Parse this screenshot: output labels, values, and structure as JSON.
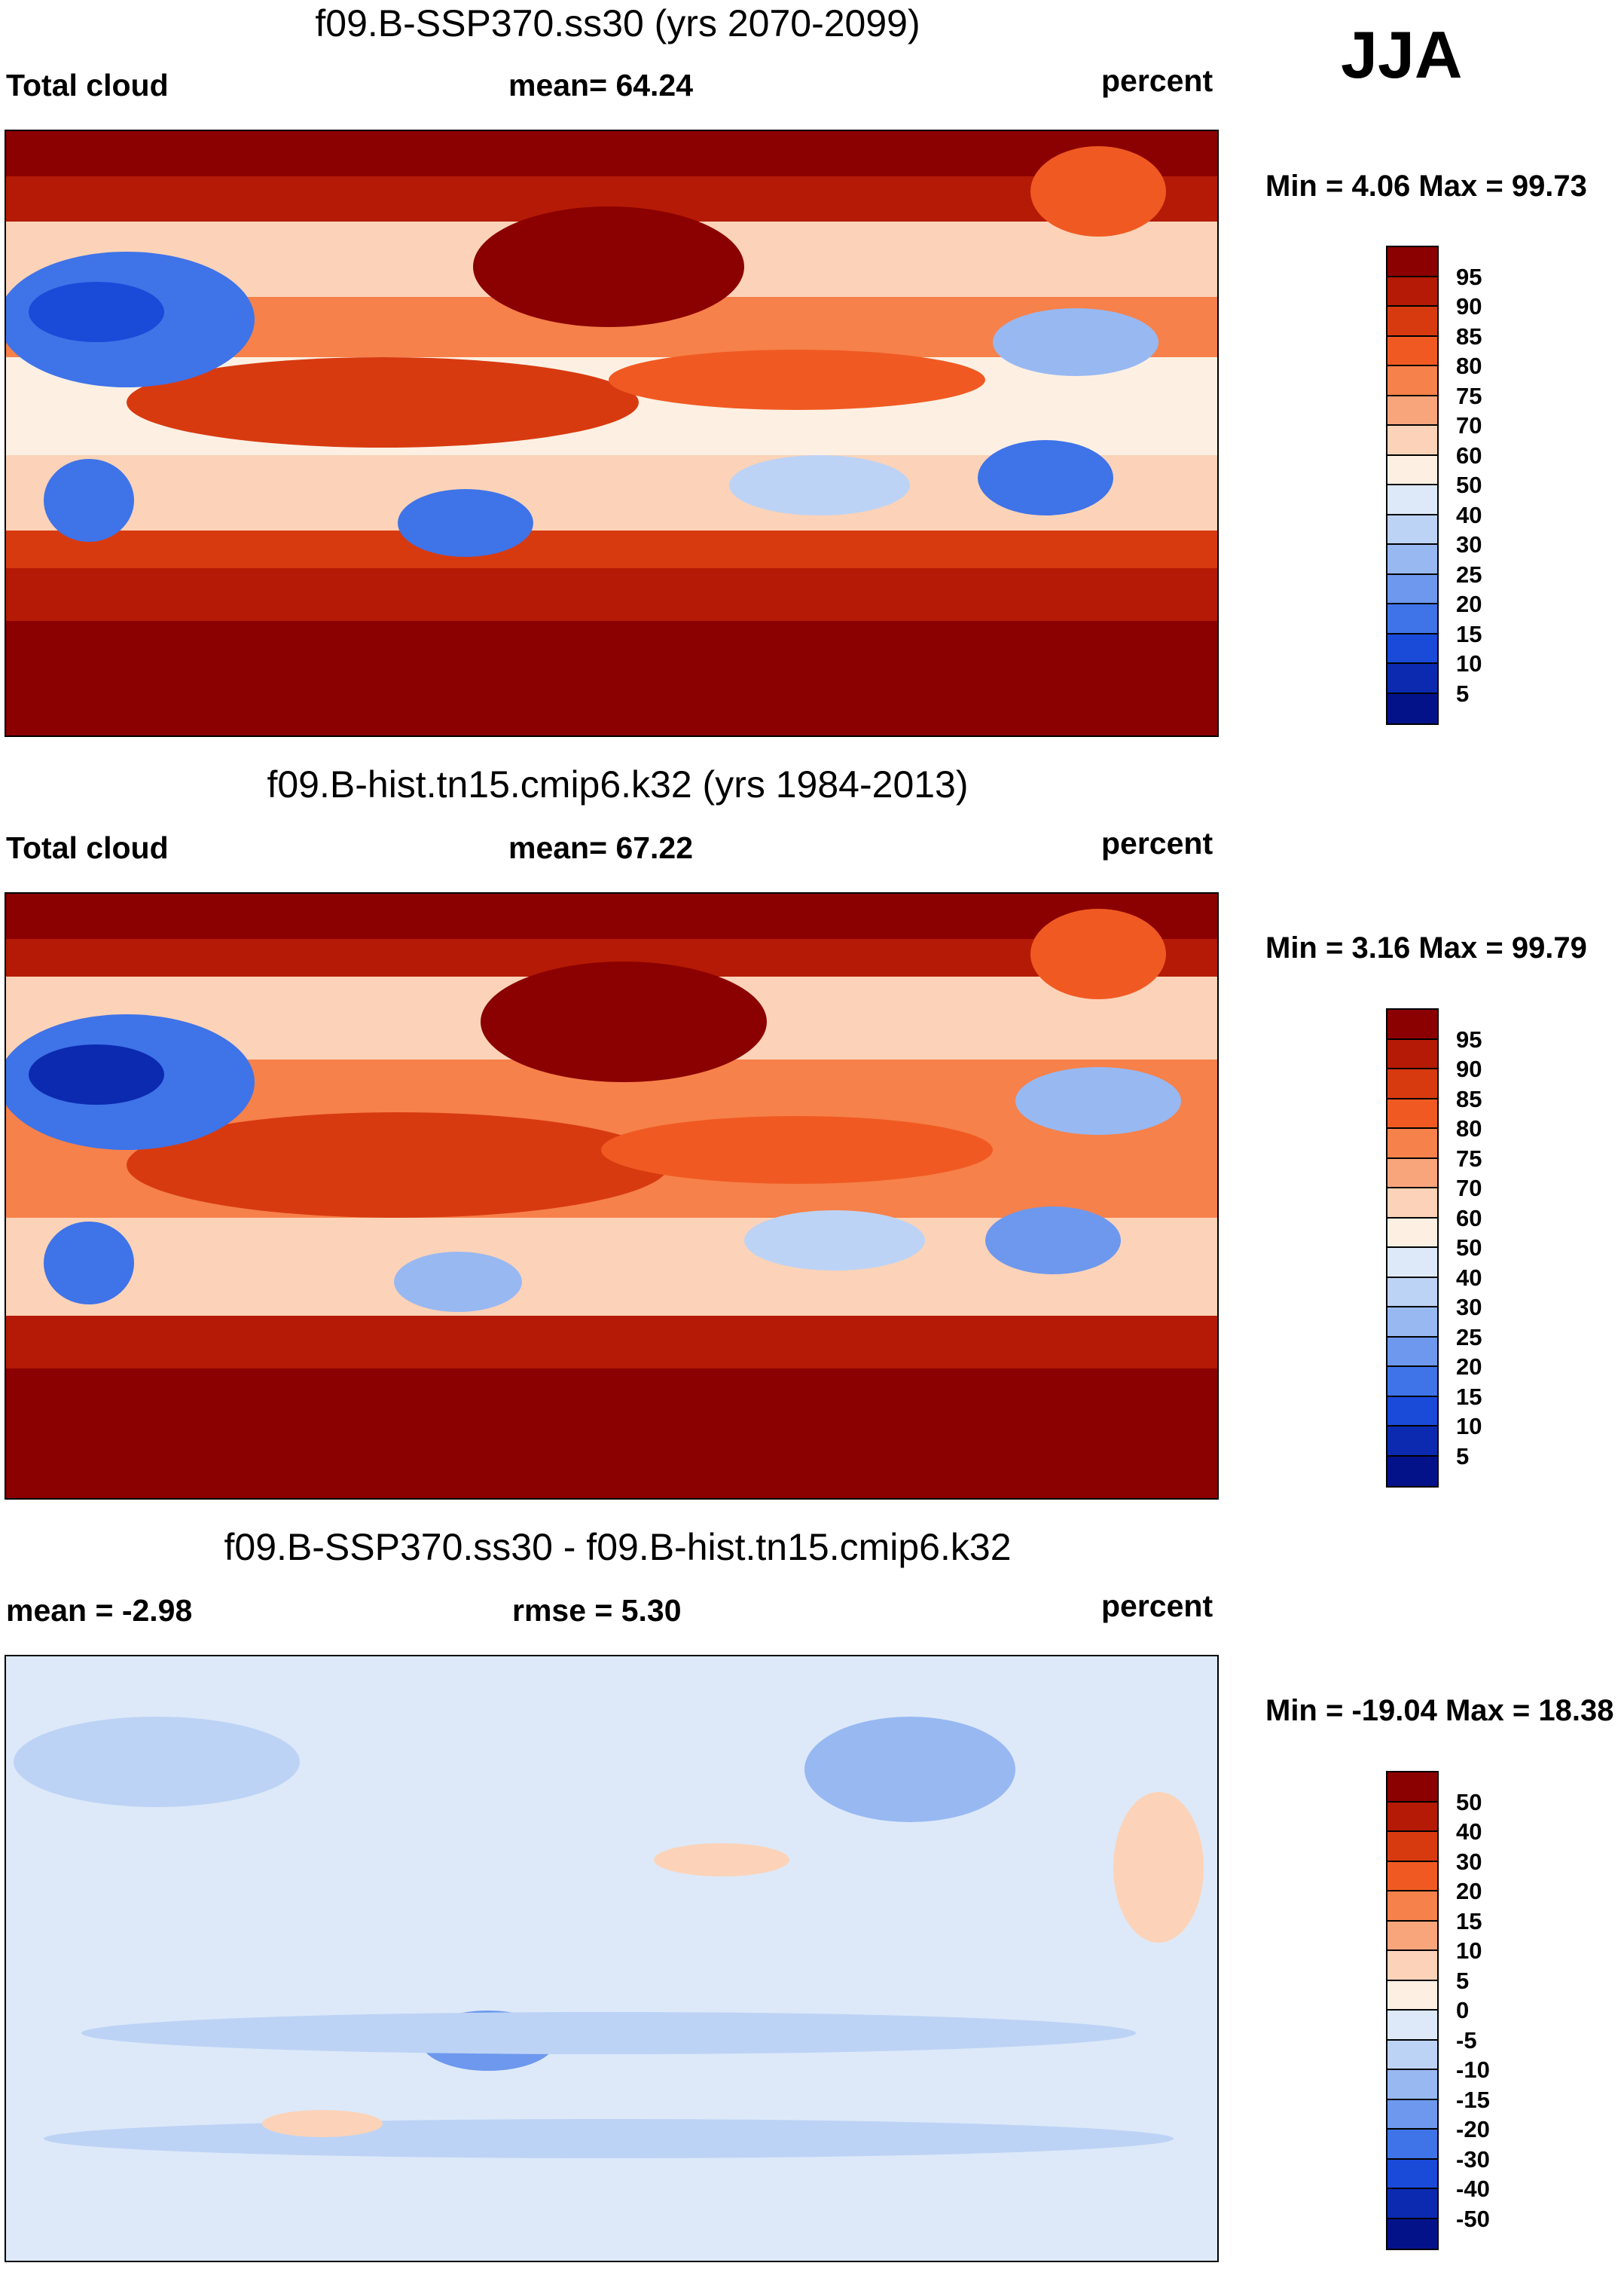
{
  "season": "JJA",
  "panels": [
    {
      "title": "f09.B-SSP370.ss30 (yrs 2070-2099)",
      "left_label": "Total cloud",
      "center_label": "mean=  64.24",
      "right_label": "percent",
      "minmax": "Min =   4.06 Max =  99.73",
      "map_label": "Total cloud amount map, future scenario",
      "levels": [
        "95",
        "90",
        "85",
        "80",
        "75",
        "70",
        "60",
        "50",
        "40",
        "30",
        "25",
        "20",
        "15",
        "10",
        "5"
      ],
      "colors": [
        "#8b0000",
        "#b41a05",
        "#d83a10",
        "#f05a22",
        "#f6814a",
        "#f9a57c",
        "#fcd3b8",
        "#fdf0e3",
        "#dde9f9",
        "#bdd3f5",
        "#98b8f2",
        "#6d98ee",
        "#3f73e8",
        "#1a4ad8",
        "#0b2ab0",
        "#04128a"
      ]
    },
    {
      "title": "f09.B-hist.tn15.cmip6.k32 (yrs 1984-2013)",
      "left_label": "Total cloud",
      "center_label": "mean=  67.22",
      "right_label": "percent",
      "minmax": "Min =   3.16 Max =  99.79",
      "map_label": "Total cloud amount map, historical",
      "levels": [
        "95",
        "90",
        "85",
        "80",
        "75",
        "70",
        "60",
        "50",
        "40",
        "30",
        "25",
        "20",
        "15",
        "10",
        "5"
      ],
      "colors": [
        "#8b0000",
        "#b41a05",
        "#d83a10",
        "#f05a22",
        "#f6814a",
        "#f9a57c",
        "#fcd3b8",
        "#fdf0e3",
        "#dde9f9",
        "#bdd3f5",
        "#98b8f2",
        "#6d98ee",
        "#3f73e8",
        "#1a4ad8",
        "#0b2ab0",
        "#04128a"
      ]
    },
    {
      "title": "f09.B-SSP370.ss30 - f09.B-hist.tn15.cmip6.k32",
      "left_label": "mean =  -2.98",
      "center_label": "rmse =    5.30",
      "right_label": "percent",
      "minmax": "Min = -19.04 Max =  18.38",
      "map_label": "Difference map",
      "levels": [
        "50",
        "40",
        "30",
        "20",
        "15",
        "10",
        "5",
        "0",
        "-5",
        "-10",
        "-15",
        "-20",
        "-30",
        "-40",
        "-50"
      ],
      "colors": [
        "#8b0000",
        "#b41a05",
        "#d83a10",
        "#f05a22",
        "#f6814a",
        "#f9a57c",
        "#fcd3b8",
        "#fdf0e3",
        "#dde9f9",
        "#bdd3f5",
        "#98b8f2",
        "#6d98ee",
        "#3f73e8",
        "#1a4ad8",
        "#0b2ab0",
        "#04128a"
      ]
    }
  ]
}
